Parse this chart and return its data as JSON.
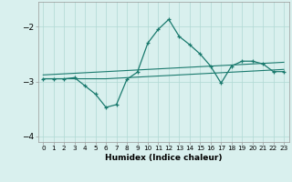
{
  "xlabel": "Humidex (Indice chaleur)",
  "x_values": [
    0,
    1,
    2,
    3,
    4,
    5,
    6,
    7,
    8,
    9,
    10,
    11,
    12,
    13,
    14,
    15,
    16,
    17,
    18,
    19,
    20,
    21,
    22,
    23
  ],
  "main_line": [
    -2.95,
    -2.95,
    -2.95,
    -2.93,
    -3.08,
    -3.23,
    -3.47,
    -3.42,
    -2.96,
    -2.83,
    -2.3,
    -2.05,
    -1.87,
    -2.18,
    -2.33,
    -2.5,
    -2.72,
    -3.03,
    -2.72,
    -2.63,
    -2.63,
    -2.68,
    -2.82,
    -2.82
  ],
  "upper_line": [
    -2.88,
    -2.87,
    -2.86,
    -2.85,
    -2.84,
    -2.83,
    -2.82,
    -2.81,
    -2.8,
    -2.79,
    -2.78,
    -2.77,
    -2.76,
    -2.75,
    -2.74,
    -2.73,
    -2.72,
    -2.71,
    -2.7,
    -2.69,
    -2.68,
    -2.67,
    -2.66,
    -2.65
  ],
  "lower_line": [
    -2.95,
    -2.95,
    -2.95,
    -2.95,
    -2.95,
    -2.95,
    -2.95,
    -2.94,
    -2.93,
    -2.92,
    -2.91,
    -2.9,
    -2.89,
    -2.88,
    -2.87,
    -2.86,
    -2.85,
    -2.84,
    -2.83,
    -2.82,
    -2.81,
    -2.8,
    -2.79,
    -2.78
  ],
  "line_color": "#1a7a6e",
  "bg_color": "#d9f0ee",
  "grid_color": "#b0d8d4",
  "ylim": [
    -4.1,
    -1.55
  ],
  "yticks": [
    -4,
    -3,
    -2
  ],
  "dpi": 100
}
